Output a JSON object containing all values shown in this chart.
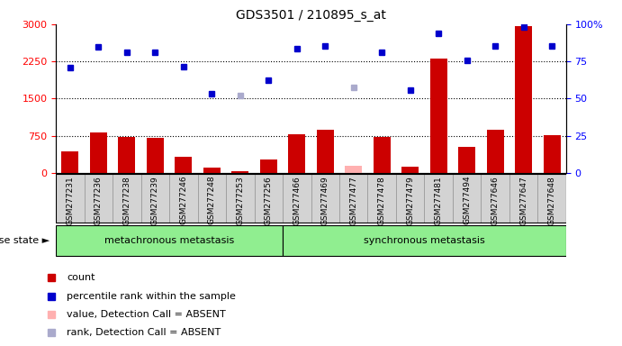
{
  "title": "GDS3501 / 210895_s_at",
  "samples": [
    "GSM277231",
    "GSM277236",
    "GSM277238",
    "GSM277239",
    "GSM277246",
    "GSM277248",
    "GSM277253",
    "GSM277256",
    "GSM277466",
    "GSM277469",
    "GSM277477",
    "GSM277478",
    "GSM277479",
    "GSM277481",
    "GSM277494",
    "GSM277646",
    "GSM277647",
    "GSM277648"
  ],
  "count_values": [
    430,
    820,
    730,
    700,
    320,
    110,
    30,
    280,
    790,
    870,
    140,
    730,
    130,
    2310,
    530,
    870,
    2960,
    760
  ],
  "count_absent": [
    false,
    false,
    false,
    false,
    false,
    false,
    false,
    false,
    false,
    false,
    true,
    false,
    false,
    false,
    false,
    false,
    false,
    false
  ],
  "rank_values": [
    2130,
    2550,
    2430,
    2430,
    2150,
    1600,
    1560,
    1880,
    2510,
    2570,
    1720,
    2430,
    1680,
    2820,
    2270,
    2560,
    2950,
    2560
  ],
  "rank_absent": [
    false,
    false,
    false,
    false,
    false,
    false,
    true,
    false,
    false,
    false,
    true,
    false,
    false,
    false,
    false,
    false,
    false,
    false
  ],
  "group1_count": 8,
  "group1_label": "metachronous metastasis",
  "group2_label": "synchronous metastasis",
  "ylim_left": [
    0,
    3000
  ],
  "ylim_right": [
    0,
    100
  ],
  "yticks_left": [
    0,
    750,
    1500,
    2250,
    3000
  ],
  "yticks_right": [
    0,
    25,
    50,
    75,
    100
  ],
  "bar_color_normal": "#cc0000",
  "bar_color_absent": "#ffb0b0",
  "dot_color_normal": "#0000cc",
  "dot_color_absent": "#aaaacc",
  "bg_color_label": "#d3d3d3",
  "group_color": "#90ee90",
  "disease_label": "disease state",
  "legend_items": [
    {
      "label": "count",
      "color": "#cc0000"
    },
    {
      "label": "percentile rank within the sample",
      "color": "#0000cc"
    },
    {
      "label": "value, Detection Call = ABSENT",
      "color": "#ffb0b0"
    },
    {
      "label": "rank, Detection Call = ABSENT",
      "color": "#aaaacc"
    }
  ]
}
